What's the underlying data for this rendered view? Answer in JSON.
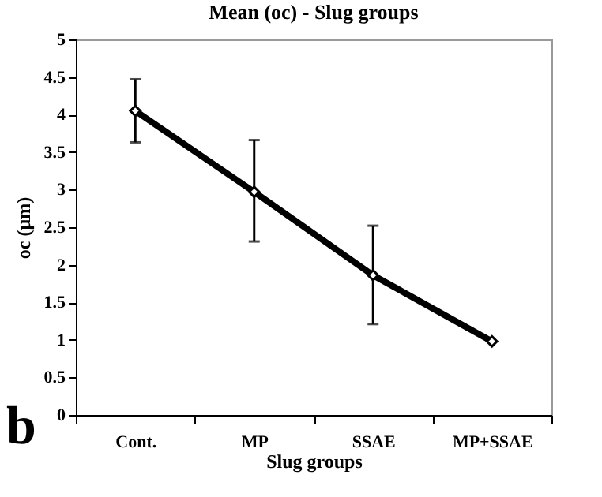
{
  "chart_data": {
    "type": "line",
    "title": "Mean (oc) - Slug groups",
    "xlabel": "Slug groups",
    "ylabel": "oc (µm)",
    "categories": [
      "Cont.",
      "MP",
      "SSAE",
      "MP+SSAE"
    ],
    "series": [
      {
        "color": "#000000",
        "values": [
          4.05,
          2.97,
          1.86,
          0.98
        ],
        "errors": [
          [
            3.63,
            4.47
          ],
          [
            2.31,
            3.66
          ],
          [
            1.21,
            2.52
          ],
          null
        ]
      }
    ],
    "ylim": [
      0,
      5
    ],
    "yticks": [
      0,
      0.5,
      1,
      1.5,
      2,
      2.5,
      3,
      3.5,
      4,
      4.5,
      5
    ],
    "grid": false,
    "legend": false,
    "marker": "diamond",
    "line_style": "solid",
    "annotations": [
      "b"
    ]
  }
}
